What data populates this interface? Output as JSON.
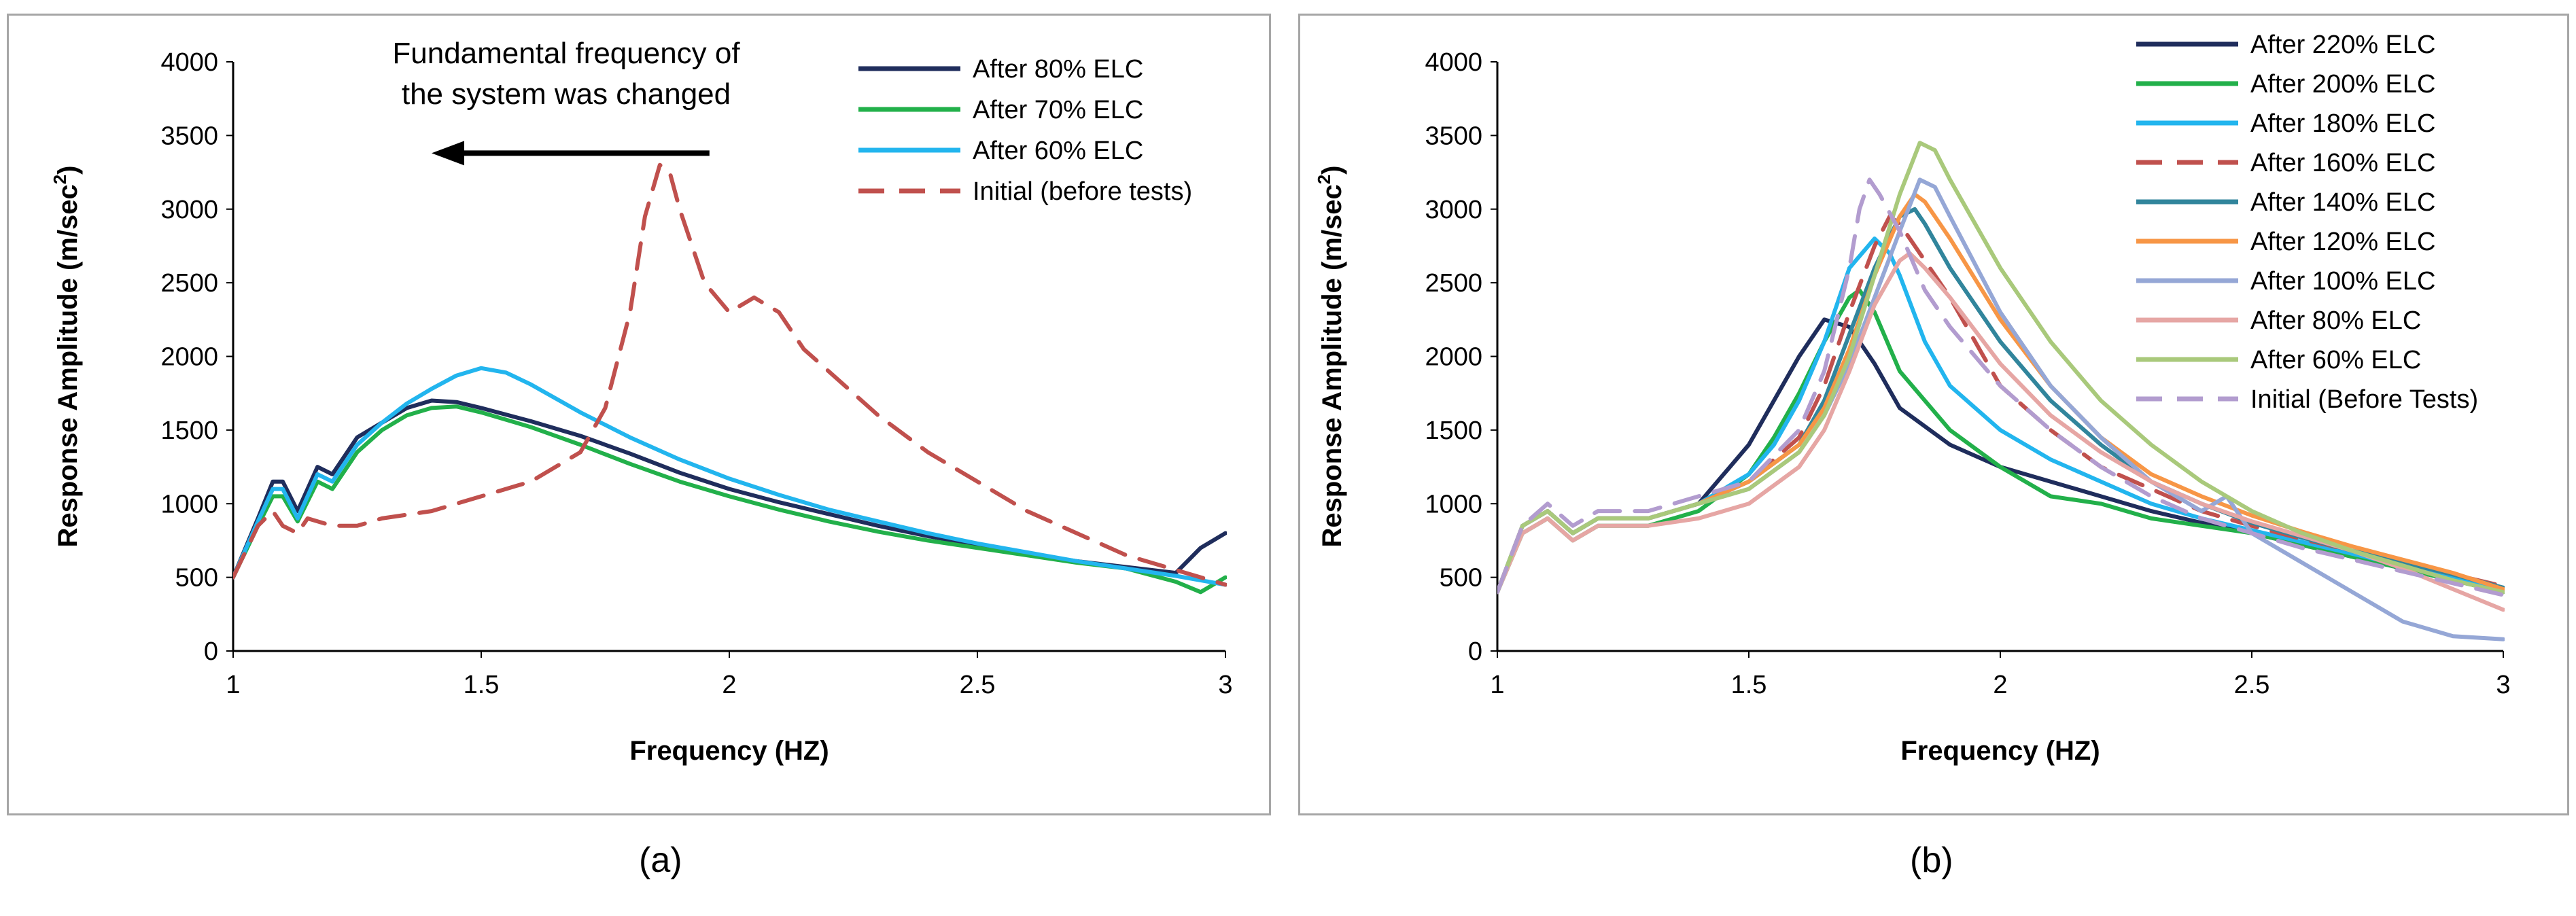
{
  "captions": {
    "a": "(a)",
    "b": "(b)"
  },
  "chart_data": [
    {
      "type": "line",
      "xlabel": "Frequency (HZ)",
      "ylabel_main": "Response Amplitude (m/sec",
      "ylabel_sup": "2",
      "ylabel_end": ")",
      "xlim": [
        1,
        3
      ],
      "ylim": [
        0,
        4000
      ],
      "xticks": [
        1,
        1.5,
        2,
        2.5,
        3
      ],
      "xtick_labels": [
        "1",
        "1.5",
        "2",
        "2.5",
        "3"
      ],
      "yticks": [
        0,
        500,
        1000,
        1500,
        2000,
        2500,
        3000,
        3500,
        4000
      ],
      "ytick_labels": [
        "0",
        "500",
        "1000",
        "1500",
        "2000",
        "2500",
        "3000",
        "3500",
        "4000"
      ],
      "legend_position": "top-right",
      "annotation": {
        "line1": "Fundamental frequency of",
        "line2": "the system was changed",
        "arrow_from": [
          1.96,
          3380
        ],
        "arrow_to": [
          1.4,
          3380
        ]
      },
      "series": [
        {
          "name": "After 80% ELC",
          "color": "#1f2d5c",
          "dash": false,
          "x": [
            1,
            1.05,
            1.08,
            1.1,
            1.13,
            1.17,
            1.2,
            1.25,
            1.3,
            1.35,
            1.4,
            1.45,
            1.5,
            1.6,
            1.7,
            1.8,
            1.9,
            2.0,
            2.1,
            2.2,
            2.3,
            2.4,
            2.5,
            2.6,
            2.7,
            2.8,
            2.9,
            2.95,
            3.0
          ],
          "y": [
            500,
            900,
            1150,
            1150,
            950,
            1250,
            1200,
            1450,
            1550,
            1650,
            1700,
            1690,
            1650,
            1560,
            1460,
            1340,
            1210,
            1100,
            1010,
            930,
            850,
            780,
            720,
            660,
            610,
            570,
            530,
            700,
            800
          ]
        },
        {
          "name": "After 70% ELC",
          "color": "#22b04a",
          "dash": false,
          "x": [
            1,
            1.05,
            1.08,
            1.1,
            1.13,
            1.17,
            1.2,
            1.25,
            1.3,
            1.35,
            1.4,
            1.45,
            1.5,
            1.6,
            1.7,
            1.8,
            1.9,
            2.0,
            2.1,
            2.2,
            2.3,
            2.4,
            2.5,
            2.6,
            2.7,
            2.8,
            2.9,
            2.95,
            3.0
          ],
          "y": [
            500,
            850,
            1050,
            1050,
            880,
            1150,
            1100,
            1350,
            1500,
            1600,
            1650,
            1660,
            1620,
            1520,
            1400,
            1270,
            1150,
            1050,
            960,
            880,
            810,
            750,
            700,
            650,
            600,
            560,
            470,
            400,
            500
          ]
        },
        {
          "name": "After 60% ELC",
          "color": "#22b5ee",
          "dash": false,
          "x": [
            1,
            1.05,
            1.08,
            1.1,
            1.13,
            1.17,
            1.2,
            1.25,
            1.3,
            1.35,
            1.4,
            1.45,
            1.5,
            1.55,
            1.6,
            1.7,
            1.8,
            1.9,
            2.0,
            2.1,
            2.2,
            2.3,
            2.4,
            2.5,
            2.6,
            2.7,
            2.8,
            2.9,
            3.0
          ],
          "y": [
            500,
            880,
            1100,
            1100,
            900,
            1200,
            1150,
            1400,
            1550,
            1680,
            1780,
            1870,
            1920,
            1890,
            1810,
            1620,
            1450,
            1300,
            1170,
            1060,
            960,
            880,
            800,
            730,
            670,
            610,
            560,
            510,
            450
          ]
        },
        {
          "name": "Initial (before tests)",
          "color": "#c0504d",
          "dash": true,
          "x": [
            1,
            1.05,
            1.08,
            1.1,
            1.13,
            1.15,
            1.2,
            1.25,
            1.3,
            1.4,
            1.5,
            1.6,
            1.7,
            1.75,
            1.8,
            1.83,
            1.86,
            1.88,
            1.9,
            1.95,
            2.0,
            2.05,
            2.1,
            2.15,
            2.2,
            2.25,
            2.3,
            2.4,
            2.5,
            2.6,
            2.7,
            2.8,
            2.9,
            3.0
          ],
          "y": [
            500,
            850,
            950,
            850,
            800,
            900,
            850,
            850,
            900,
            950,
            1050,
            1150,
            1350,
            1650,
            2300,
            2950,
            3300,
            3250,
            3000,
            2500,
            2300,
            2400,
            2300,
            2050,
            1900,
            1750,
            1600,
            1350,
            1150,
            950,
            800,
            650,
            550,
            450
          ]
        }
      ]
    },
    {
      "type": "line",
      "xlabel": "Frequency (HZ)",
      "ylabel_main": "Response Amplitude (m/sec",
      "ylabel_sup": "2",
      "ylabel_end": ")",
      "xlim": [
        1,
        3
      ],
      "ylim": [
        0,
        4000
      ],
      "xticks": [
        1,
        1.5,
        2,
        2.5,
        3
      ],
      "xtick_labels": [
        "1",
        "1.5",
        "2",
        "2.5",
        "3"
      ],
      "yticks": [
        0,
        500,
        1000,
        1500,
        2000,
        2500,
        3000,
        3500,
        4000
      ],
      "ytick_labels": [
        "0",
        "500",
        "1000",
        "1500",
        "2000",
        "2500",
        "3000",
        "3500",
        "4000"
      ],
      "legend_position": "top-right",
      "series": [
        {
          "name": "After 220% ELC",
          "color": "#1f2d5c",
          "dash": false,
          "x": [
            1,
            1.05,
            1.1,
            1.15,
            1.2,
            1.3,
            1.4,
            1.5,
            1.55,
            1.6,
            1.65,
            1.7,
            1.75,
            1.8,
            1.9,
            2.0,
            2.1,
            2.2,
            2.3,
            2.4,
            2.5,
            2.6,
            2.7,
            2.8,
            2.9,
            3.0
          ],
          "y": [
            400,
            850,
            950,
            800,
            900,
            900,
            1000,
            1400,
            1700,
            2000,
            2250,
            2200,
            1950,
            1650,
            1400,
            1250,
            1150,
            1050,
            950,
            870,
            800,
            720,
            640,
            560,
            480,
            400
          ]
        },
        {
          "name": "After 200% ELC",
          "color": "#22b04a",
          "dash": false,
          "x": [
            1,
            1.05,
            1.1,
            1.15,
            1.2,
            1.3,
            1.4,
            1.5,
            1.55,
            1.6,
            1.65,
            1.7,
            1.72,
            1.75,
            1.8,
            1.9,
            2.0,
            2.1,
            2.2,
            2.3,
            2.4,
            2.5,
            2.6,
            2.7,
            2.8,
            2.9,
            3.0
          ],
          "y": [
            400,
            800,
            900,
            750,
            850,
            850,
            950,
            1200,
            1450,
            1750,
            2100,
            2400,
            2450,
            2300,
            1900,
            1500,
            1250,
            1050,
            1000,
            900,
            850,
            800,
            720,
            640,
            560,
            480,
            400
          ]
        },
        {
          "name": "After 180% ELC",
          "color": "#22b5ee",
          "dash": false,
          "x": [
            1,
            1.05,
            1.1,
            1.15,
            1.2,
            1.3,
            1.4,
            1.5,
            1.55,
            1.6,
            1.65,
            1.7,
            1.75,
            1.78,
            1.8,
            1.85,
            1.9,
            2.0,
            2.1,
            2.2,
            2.3,
            2.4,
            2.5,
            2.6,
            2.7,
            2.8,
            2.9,
            3.0
          ],
          "y": [
            400,
            850,
            950,
            800,
            900,
            900,
            1000,
            1200,
            1400,
            1700,
            2100,
            2600,
            2800,
            2700,
            2550,
            2100,
            1800,
            1500,
            1300,
            1150,
            1000,
            900,
            820,
            740,
            660,
            580,
            500,
            420
          ]
        },
        {
          "name": "After 160% ELC",
          "color": "#c0504d",
          "dash": true,
          "x": [
            1,
            1.05,
            1.1,
            1.15,
            1.2,
            1.3,
            1.4,
            1.5,
            1.6,
            1.65,
            1.7,
            1.75,
            1.78,
            1.8,
            1.85,
            1.9,
            2.0,
            2.1,
            2.2,
            2.3,
            2.4,
            2.5,
            2.6,
            2.7,
            2.8,
            2.9,
            3.0
          ],
          "y": [
            400,
            850,
            950,
            800,
            900,
            900,
            1000,
            1150,
            1450,
            1800,
            2300,
            2750,
            2950,
            2900,
            2650,
            2400,
            1800,
            1500,
            1250,
            1100,
            950,
            850,
            760,
            680,
            600,
            520,
            440
          ]
        },
        {
          "name": "After 140% ELC",
          "color": "#31859c",
          "dash": false,
          "x": [
            1,
            1.05,
            1.1,
            1.15,
            1.2,
            1.3,
            1.4,
            1.5,
            1.6,
            1.65,
            1.7,
            1.75,
            1.8,
            1.83,
            1.85,
            1.9,
            2.0,
            2.1,
            2.2,
            2.3,
            2.4,
            2.5,
            2.6,
            2.7,
            2.8,
            2.9,
            3.0
          ],
          "y": [
            400,
            850,
            950,
            800,
            900,
            900,
            1000,
            1150,
            1400,
            1700,
            2150,
            2600,
            2950,
            3000,
            2900,
            2600,
            2100,
            1700,
            1400,
            1150,
            1000,
            870,
            770,
            680,
            600,
            520,
            430
          ]
        },
        {
          "name": "After 120% ELC",
          "color": "#f79646",
          "dash": false,
          "x": [
            1,
            1.05,
            1.1,
            1.15,
            1.2,
            1.3,
            1.4,
            1.5,
            1.6,
            1.65,
            1.7,
            1.75,
            1.8,
            1.83,
            1.85,
            1.9,
            2.0,
            2.1,
            2.2,
            2.3,
            2.4,
            2.5,
            2.6,
            2.7,
            2.8,
            2.9,
            3.0
          ],
          "y": [
            400,
            850,
            950,
            800,
            900,
            900,
            1000,
            1150,
            1400,
            1650,
            2050,
            2550,
            2950,
            3100,
            3050,
            2800,
            2250,
            1800,
            1450,
            1200,
            1050,
            920,
            810,
            710,
            620,
            530,
            420
          ]
        },
        {
          "name": "After 100% ELC",
          "color": "#95a7d6",
          "dash": false,
          "x": [
            1,
            1.05,
            1.1,
            1.15,
            1.2,
            1.3,
            1.4,
            1.5,
            1.6,
            1.65,
            1.7,
            1.75,
            1.8,
            1.84,
            1.87,
            1.9,
            2.0,
            2.1,
            2.2,
            2.3,
            2.4,
            2.45,
            2.5,
            2.6,
            2.7,
            2.8,
            2.9,
            3.0
          ],
          "y": [
            400,
            850,
            950,
            800,
            900,
            900,
            1000,
            1100,
            1350,
            1600,
            1950,
            2400,
            2850,
            3200,
            3150,
            2950,
            2300,
            1800,
            1450,
            1150,
            950,
            1050,
            800,
            600,
            400,
            200,
            100,
            80
          ]
        },
        {
          "name": "After 80% ELC",
          "color": "#e6a6a4",
          "dash": false,
          "x": [
            1,
            1.05,
            1.1,
            1.15,
            1.2,
            1.3,
            1.4,
            1.5,
            1.6,
            1.65,
            1.7,
            1.75,
            1.8,
            1.82,
            1.85,
            1.9,
            2.0,
            2.1,
            2.2,
            2.3,
            2.4,
            2.5,
            2.6,
            2.7,
            2.8,
            2.9,
            3.0
          ],
          "y": [
            400,
            800,
            900,
            750,
            850,
            850,
            900,
            1000,
            1250,
            1500,
            1900,
            2350,
            2650,
            2700,
            2600,
            2400,
            1950,
            1600,
            1350,
            1150,
            1000,
            880,
            780,
            680,
            560,
            420,
            280
          ]
        },
        {
          "name": "After 60% ELC",
          "color": "#a9c97b",
          "dash": false,
          "x": [
            1,
            1.05,
            1.1,
            1.15,
            1.2,
            1.3,
            1.4,
            1.5,
            1.6,
            1.65,
            1.7,
            1.75,
            1.8,
            1.84,
            1.87,
            1.9,
            2.0,
            2.1,
            2.2,
            2.3,
            2.4,
            2.5,
            2.6,
            2.7,
            2.8,
            2.9,
            3.0
          ],
          "y": [
            400,
            850,
            950,
            800,
            900,
            900,
            1000,
            1100,
            1350,
            1600,
            2000,
            2550,
            3100,
            3450,
            3400,
            3200,
            2600,
            2100,
            1700,
            1400,
            1150,
            950,
            800,
            680,
            580,
            480,
            400
          ]
        },
        {
          "name": "Initial (Before Tests)",
          "color": "#b29ccf",
          "dash": true,
          "x": [
            1,
            1.05,
            1.1,
            1.15,
            1.2,
            1.3,
            1.4,
            1.5,
            1.6,
            1.65,
            1.7,
            1.72,
            1.74,
            1.76,
            1.8,
            1.85,
            1.9,
            2.0,
            2.1,
            2.2,
            2.3,
            2.4,
            2.5,
            2.6,
            2.7,
            2.8,
            2.9,
            3.0
          ],
          "y": [
            400,
            850,
            1000,
            850,
            950,
            950,
            1050,
            1150,
            1500,
            1900,
            2600,
            3000,
            3200,
            3100,
            2850,
            2450,
            2200,
            1800,
            1500,
            1250,
            1050,
            900,
            800,
            700,
            620,
            540,
            460,
            380
          ]
        }
      ]
    }
  ]
}
